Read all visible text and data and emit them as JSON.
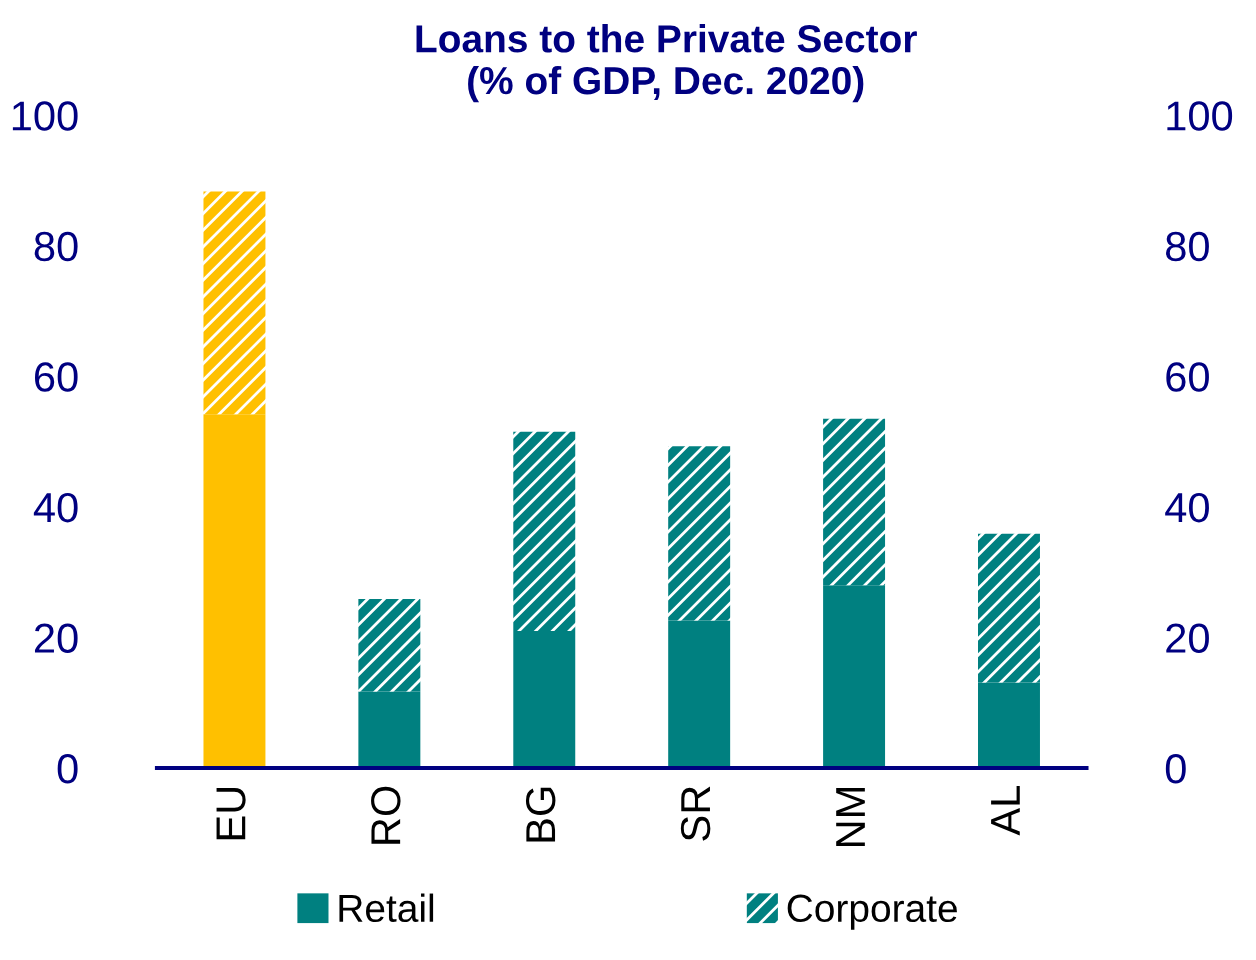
{
  "chart_data": {
    "type": "bar",
    "stacked": true,
    "title": "Loans to the Private Sector\n(% of GDP, Dec. 2020)",
    "categories": [
      "EU",
      "RO",
      "BG",
      "SR",
      "NM",
      "AL"
    ],
    "series": [
      {
        "name": "Retail",
        "color": "#008080",
        "colors": [
          "#ffc000",
          "#008080",
          "#008080",
          "#008080",
          "#008080",
          "#008080"
        ],
        "values": [
          54.2,
          11.7,
          21.0,
          22.6,
          28.0,
          13.1
        ]
      },
      {
        "name": "Corporate",
        "color": "#008080",
        "colors": [
          "#ffc000",
          "#008080",
          "#008080",
          "#008080",
          "#008080",
          "#008080"
        ],
        "values": [
          34.1,
          14.2,
          30.5,
          26.7,
          25.5,
          22.8
        ]
      }
    ],
    "ylim": [
      0,
      100
    ],
    "yticks": [
      0,
      20,
      40,
      60,
      80,
      100
    ],
    "y2lim": [
      0,
      100
    ],
    "y2ticks": [
      0,
      20,
      40,
      60,
      80,
      100
    ],
    "grid": false,
    "legend": "bottom"
  }
}
